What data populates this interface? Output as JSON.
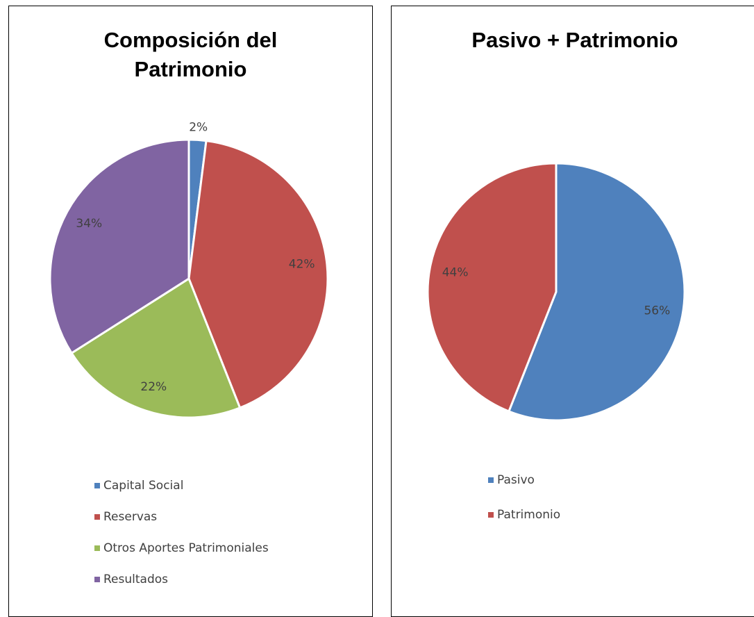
{
  "chart_data": [
    {
      "type": "pie",
      "title": "Composición del Patrimonio",
      "categories": [
        "Capital Social",
        "Reservas",
        "Otros Aportes Patrimoniales",
        "Resultados"
      ],
      "values": [
        2,
        42,
        22,
        34
      ],
      "value_labels": [
        "2%",
        "42%",
        "22%",
        "34%"
      ],
      "colors": [
        "#4f81bd",
        "#c0504d",
        "#9bbb59",
        "#8064a2"
      ],
      "legend": "bottom"
    },
    {
      "type": "pie",
      "title": "Pasivo + Patrimonio",
      "categories": [
        "Pasivo",
        "Patrimonio"
      ],
      "values": [
        56,
        44
      ],
      "value_labels": [
        "56%",
        "44%"
      ],
      "colors": [
        "#4f81bd",
        "#c0504d"
      ],
      "legend": "bottom"
    }
  ]
}
